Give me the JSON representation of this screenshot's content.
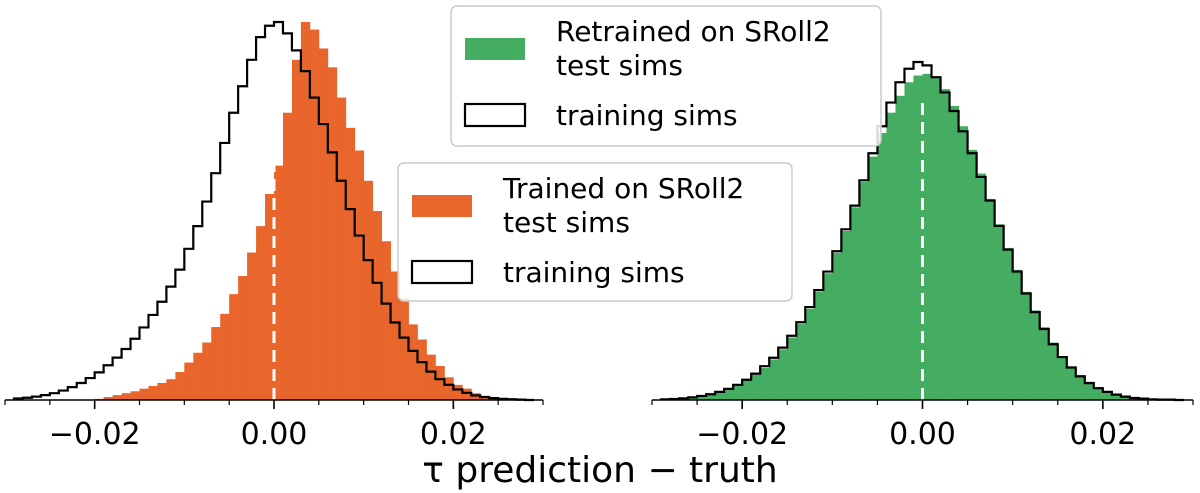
{
  "xlabel": "τ prediction − truth",
  "chart_data": [
    {
      "type": "histogram",
      "panel": "left",
      "xlim": [
        -0.03,
        0.03
      ],
      "x_ticks": [
        -0.02,
        0.0,
        0.02
      ],
      "x_tick_labels": [
        "−0.02",
        "0.00",
        "0.02"
      ],
      "reference_line_x": 0.0,
      "legend_position": "middle-right",
      "bin_edges": [
        -0.029,
        -0.028,
        -0.027,
        -0.026,
        -0.025,
        -0.024,
        -0.023,
        -0.022,
        -0.021,
        -0.02,
        -0.019,
        -0.018,
        -0.017,
        -0.016,
        -0.015,
        -0.014,
        -0.013,
        -0.012,
        -0.011,
        -0.01,
        -0.009,
        -0.008,
        -0.007,
        -0.006,
        -0.005,
        -0.004,
        -0.003,
        -0.002,
        -0.001,
        0.0,
        0.001,
        0.002,
        0.003,
        0.004,
        0.005,
        0.006,
        0.007,
        0.008,
        0.009,
        0.01,
        0.011,
        0.012,
        0.013,
        0.014,
        0.015,
        0.016,
        0.017,
        0.018,
        0.019,
        0.02,
        0.021,
        0.022,
        0.023,
        0.024,
        0.025,
        0.026,
        0.027,
        0.028,
        0.029
      ],
      "series": [
        {
          "name": "Trained on SRoll2\ntest sims",
          "style": "filled",
          "color": "#e8652b",
          "counts": [
            0,
            0,
            0,
            0,
            0,
            0,
            0,
            0,
            0.001,
            0.003,
            0.008,
            0.013,
            0.018,
            0.023,
            0.03,
            0.037,
            0.045,
            0.055,
            0.074,
            0.099,
            0.125,
            0.152,
            0.193,
            0.228,
            0.28,
            0.328,
            0.39,
            0.46,
            0.545,
            0.62,
            0.76,
            0.9,
            1.0,
            0.98,
            0.93,
            0.88,
            0.8,
            0.72,
            0.66,
            0.58,
            0.5,
            0.42,
            0.34,
            0.27,
            0.2,
            0.16,
            0.12,
            0.09,
            0.06,
            0.04,
            0.03,
            0.018,
            0.01,
            0.005,
            0.002,
            0.001,
            0,
            0
          ]
        },
        {
          "name": "training sims",
          "style": "step",
          "color": "#000000",
          "counts": [
            0.004,
            0.006,
            0.009,
            0.013,
            0.018,
            0.025,
            0.034,
            0.045,
            0.058,
            0.073,
            0.092,
            0.112,
            0.135,
            0.162,
            0.192,
            0.225,
            0.26,
            0.3,
            0.345,
            0.4,
            0.46,
            0.525,
            0.6,
            0.68,
            0.76,
            0.83,
            0.9,
            0.96,
            0.99,
            1.0,
            0.97,
            0.925,
            0.87,
            0.8,
            0.73,
            0.655,
            0.58,
            0.505,
            0.435,
            0.37,
            0.31,
            0.255,
            0.205,
            0.165,
            0.13,
            0.1,
            0.075,
            0.055,
            0.04,
            0.028,
            0.019,
            0.012,
            0.008,
            0.005,
            0.003,
            0.002,
            0.001,
            0
          ]
        }
      ]
    },
    {
      "type": "histogram",
      "panel": "right",
      "xlim": [
        -0.03,
        0.03
      ],
      "x_ticks": [
        -0.02,
        0.0,
        0.02
      ],
      "x_tick_labels": [
        "−0.02",
        "0.00",
        "0.02"
      ],
      "reference_line_x": 0.0,
      "legend_position": "top-right",
      "bin_edges": [
        -0.029,
        -0.028,
        -0.027,
        -0.026,
        -0.025,
        -0.024,
        -0.023,
        -0.022,
        -0.021,
        -0.02,
        -0.019,
        -0.018,
        -0.017,
        -0.016,
        -0.015,
        -0.014,
        -0.013,
        -0.012,
        -0.011,
        -0.01,
        -0.009,
        -0.008,
        -0.007,
        -0.006,
        -0.005,
        -0.004,
        -0.003,
        -0.002,
        -0.001,
        0.0,
        0.001,
        0.002,
        0.003,
        0.004,
        0.005,
        0.006,
        0.007,
        0.008,
        0.009,
        0.01,
        0.011,
        0.012,
        0.013,
        0.014,
        0.015,
        0.016,
        0.017,
        0.018,
        0.019,
        0.02,
        0.021,
        0.022,
        0.023,
        0.024,
        0.025,
        0.026,
        0.027,
        0.028,
        0.029
      ],
      "series": [
        {
          "name": "Retrained on SRoll2\ntest sims",
          "style": "filled",
          "color": "#45ad62",
          "counts": [
            0.002,
            0.003,
            0.005,
            0.008,
            0.012,
            0.017,
            0.024,
            0.033,
            0.044,
            0.058,
            0.075,
            0.095,
            0.12,
            0.15,
            0.185,
            0.225,
            0.27,
            0.32,
            0.375,
            0.435,
            0.5,
            0.57,
            0.645,
            0.72,
            0.79,
            0.85,
            0.9,
            0.94,
            0.96,
            0.965,
            0.955,
            0.92,
            0.87,
            0.81,
            0.74,
            0.67,
            0.595,
            0.52,
            0.45,
            0.385,
            0.32,
            0.265,
            0.215,
            0.17,
            0.13,
            0.1,
            0.074,
            0.054,
            0.038,
            0.026,
            0.017,
            0.011,
            0.007,
            0.004,
            0.002,
            0.001,
            0.001,
            0
          ]
        },
        {
          "name": "training sims",
          "style": "step",
          "color": "#000000",
          "counts": [
            0.002,
            0.003,
            0.005,
            0.008,
            0.012,
            0.017,
            0.024,
            0.033,
            0.045,
            0.06,
            0.078,
            0.1,
            0.125,
            0.155,
            0.19,
            0.23,
            0.275,
            0.325,
            0.38,
            0.44,
            0.505,
            0.575,
            0.65,
            0.73,
            0.81,
            0.88,
            0.94,
            0.98,
            1.0,
            0.99,
            0.955,
            0.91,
            0.855,
            0.795,
            0.73,
            0.66,
            0.59,
            0.515,
            0.445,
            0.38,
            0.315,
            0.26,
            0.21,
            0.165,
            0.127,
            0.096,
            0.07,
            0.05,
            0.035,
            0.024,
            0.016,
            0.01,
            0.006,
            0.004,
            0.002,
            0.001,
            0.001,
            0
          ]
        }
      ]
    }
  ]
}
